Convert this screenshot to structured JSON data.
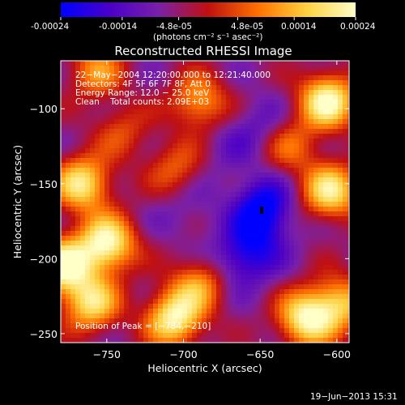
{
  "colorbar": {
    "ticks": [
      "-0.00024",
      "-0.00014",
      "-4.8e-05",
      "4.8e-05",
      "0.00014",
      "0.00024"
    ],
    "units": "(photons cm⁻² s⁻¹ asec⁻²)",
    "colors": [
      "#0000ff",
      "#4a00c8",
      "#7a20a8",
      "#c01010",
      "#ff7000",
      "#ffd040",
      "#ffffc8"
    ]
  },
  "chart_data": {
    "type": "heatmap",
    "title": "Reconstructed RHESSI Image",
    "xlabel": "Heliocentric X (arcsec)",
    "ylabel": "Heliocentric Y (arcsec)",
    "xlim": [
      -780,
      -592
    ],
    "ylim": [
      -256,
      -68
    ],
    "xticks": [
      -750,
      -700,
      -650,
      -600
    ],
    "yticks": [
      -100,
      -150,
      -200,
      -250
    ],
    "xtick_labels": [
      "−750",
      "−700",
      "−650",
      "−600"
    ],
    "ytick_labels": [
      "−100",
      "−150",
      "−200",
      "−250"
    ],
    "value_range": [
      -0.00024,
      0.00024
    ],
    "info_lines": [
      "22−May−2004 12:20:00.000 to 12:21:40.000",
      "Detectors: 4F 5F 6F 7F 8F, Att 0",
      "Energy Range: 12.0 − 25.0 keV",
      "Clean    Total counts: 2.09E+03"
    ],
    "peak_label": "Position of Peak = [−784,−210]",
    "blobs": [
      {
        "x": -757,
        "y": -75,
        "v": 0.0001
      },
      {
        "x": -690,
        "y": -95,
        "v": 0.00012
      },
      {
        "x": -606,
        "y": -95,
        "v": 0.00024
      },
      {
        "x": -604,
        "y": -155,
        "v": 0.0002
      },
      {
        "x": -650,
        "y": -210,
        "v": -8e-05
      },
      {
        "x": -766,
        "y": -150,
        "v": 0.0002
      },
      {
        "x": -750,
        "y": -190,
        "v": 0.00024
      },
      {
        "x": -778,
        "y": -205,
        "v": 0.00024
      },
      {
        "x": -760,
        "y": -230,
        "v": 0.00018
      },
      {
        "x": -706,
        "y": -240,
        "v": 0.00022
      },
      {
        "x": -690,
        "y": -217,
        "v": 0.0001
      },
      {
        "x": -620,
        "y": -240,
        "v": 0.00022
      },
      {
        "x": -598,
        "y": -230,
        "v": 0.00014
      },
      {
        "x": -705,
        "y": -140,
        "v": 6e-05
      },
      {
        "x": -650,
        "y": -110,
        "v": -0.00012
      },
      {
        "x": -668,
        "y": -125,
        "v": -0.0001
      },
      {
        "x": -648,
        "y": -165,
        "v": -0.00024
      },
      {
        "x": -650,
        "y": -185,
        "v": -0.00016
      },
      {
        "x": -700,
        "y": -170,
        "v": -0.0001
      },
      {
        "x": -664,
        "y": -200,
        "v": -0.00018
      },
      {
        "x": -630,
        "y": -175,
        "v": -6e-05
      },
      {
        "x": -720,
        "y": -200,
        "v": -6e-05
      },
      {
        "x": -680,
        "y": -150,
        "v": -8e-05
      },
      {
        "x": -740,
        "y": -115,
        "v": 4e-05
      },
      {
        "x": -630,
        "y": -125,
        "v": 6e-05
      }
    ]
  },
  "footer": {
    "timestamp": "19−Jun−2013 15:31"
  }
}
